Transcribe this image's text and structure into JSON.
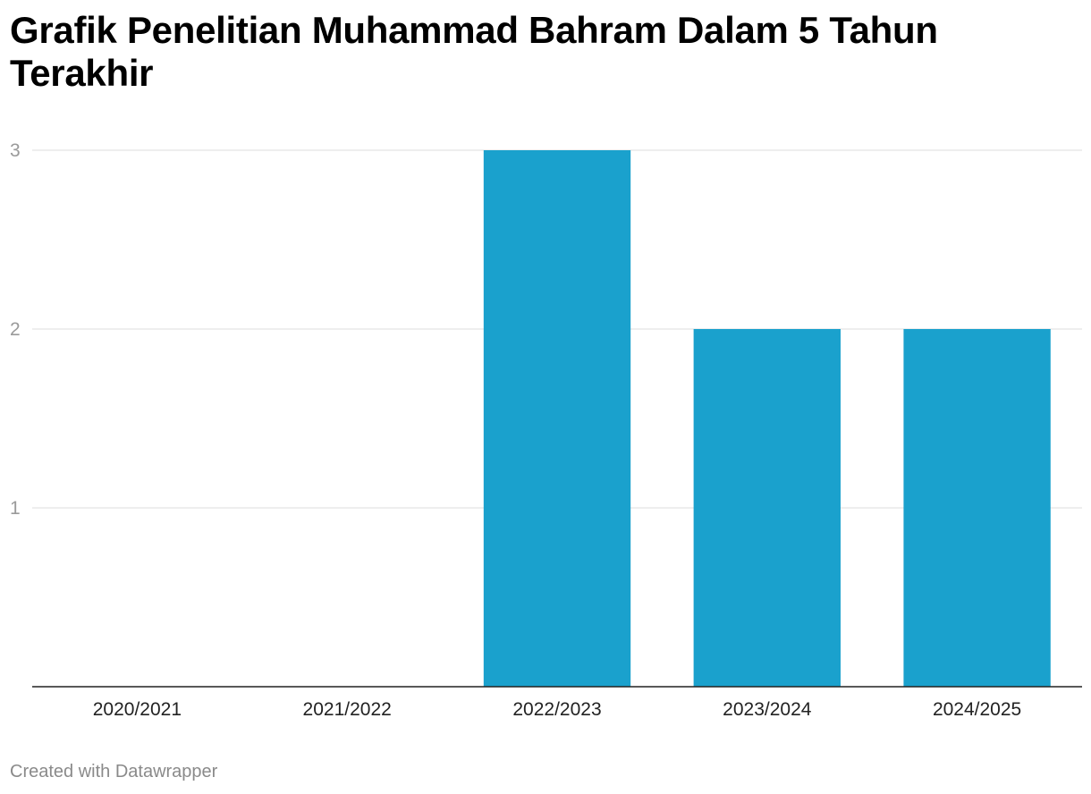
{
  "chart_data": {
    "type": "bar",
    "title": "Grafik Penelitian Muhammad Bahram Dalam 5 Tahun Terakhir",
    "categories": [
      "2020/2021",
      "2021/2022",
      "2022/2023",
      "2023/2024",
      "2024/2025"
    ],
    "values": [
      0,
      0,
      3,
      2,
      2
    ],
    "ylim": [
      0,
      3
    ],
    "yticks": [
      1,
      2,
      3
    ],
    "grid": true,
    "bar_color": "#1aa1cd",
    "xlabel": "",
    "ylabel": ""
  },
  "footer": {
    "credit": "Created with Datawrapper"
  }
}
